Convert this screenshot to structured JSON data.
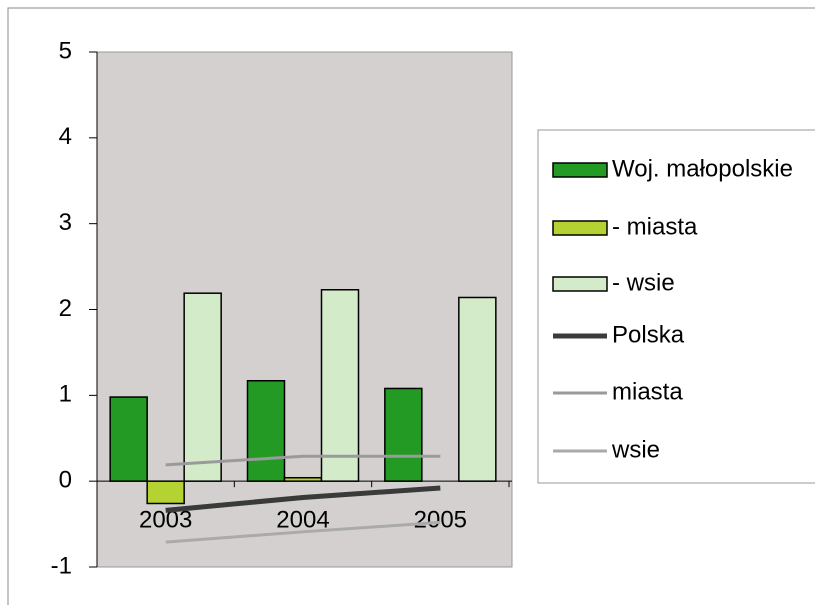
{
  "chart_data": {
    "type": "bar",
    "categories": [
      "2003",
      "2004",
      "2005"
    ],
    "series": [
      {
        "name": "Woj. małopolskie",
        "type": "bar",
        "color": "#239a23",
        "values": [
          0.98,
          1.17,
          1.08
        ]
      },
      {
        "name": "- miasta",
        "type": "bar",
        "color": "#b4d232",
        "values": [
          -0.26,
          0.04,
          0
        ]
      },
      {
        "name": "- wsie",
        "type": "bar",
        "color": "#d3ebc8",
        "values": [
          2.19,
          2.23,
          2.14
        ]
      },
      {
        "name": "Polska",
        "type": "line",
        "color": "#3a3a3a",
        "values": [
          -0.34,
          -0.19,
          -0.08
        ]
      },
      {
        "name": "miasta",
        "type": "line",
        "color": "#9a9a9a",
        "values": [
          0.19,
          0.29,
          0.29
        ]
      },
      {
        "name": "wsie",
        "type": "line",
        "color": "#aaaaaa",
        "values": [
          -0.71,
          -0.59,
          -0.48
        ]
      }
    ],
    "ylim": [
      -1,
      5
    ],
    "yticks": [
      -1,
      0,
      1,
      2,
      3,
      4,
      5
    ],
    "legend": "right"
  }
}
